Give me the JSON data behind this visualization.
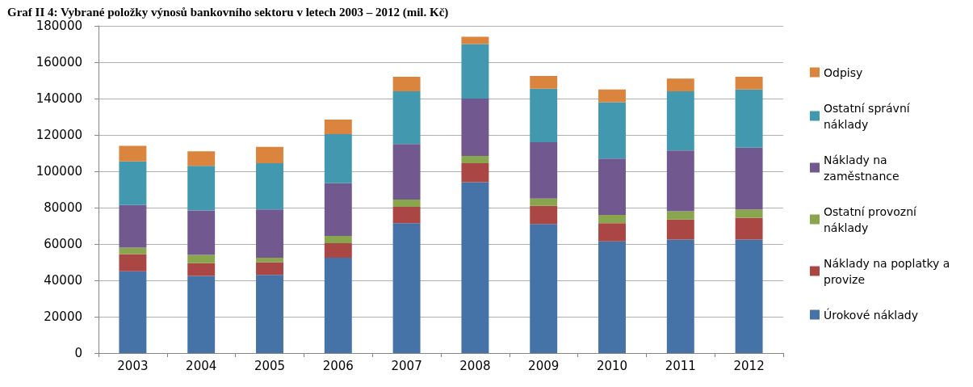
{
  "chart_data": {
    "type": "bar",
    "stacked": true,
    "title": "Graf II 4: Vybrané položky výnosů bankovního sektoru v letech 2003 – 2012 (mil. Kč)",
    "categories": [
      "2003",
      "2004",
      "2005",
      "2006",
      "2007",
      "2008",
      "2009",
      "2010",
      "2011",
      "2012"
    ],
    "series": [
      {
        "name": "Úrokové náklady",
        "color": "#4572a7",
        "values": [
          45000,
          42500,
          43000,
          52500,
          71500,
          94000,
          71000,
          61500,
          62500,
          62500
        ]
      },
      {
        "name": "Náklady na poplatky a provize",
        "color": "#aa4643",
        "values": [
          9500,
          7000,
          7000,
          8000,
          9000,
          10500,
          10000,
          10000,
          11000,
          12000
        ]
      },
      {
        "name": "Ostatní provozní náklady",
        "color": "#89a54e",
        "values": [
          3500,
          4500,
          2500,
          4000,
          4000,
          4000,
          4000,
          4500,
          4500,
          4500
        ]
      },
      {
        "name": "Náklady na zaměstnance",
        "color": "#71588f",
        "values": [
          23500,
          24500,
          26500,
          29000,
          30500,
          31500,
          31000,
          31000,
          33500,
          34000
        ]
      },
      {
        "name": "Ostatní správní náklady",
        "color": "#4198af",
        "values": [
          24000,
          24500,
          25500,
          27000,
          29000,
          30000,
          29500,
          31000,
          32500,
          32000
        ]
      },
      {
        "name": "Odpisy",
        "color": "#db843d",
        "values": [
          8500,
          8000,
          9000,
          8000,
          8000,
          4000,
          7000,
          7000,
          7000,
          7000
        ]
      }
    ],
    "ylim": [
      0,
      180000
    ],
    "yticks": [
      0,
      20000,
      40000,
      60000,
      80000,
      100000,
      120000,
      140000,
      160000,
      180000
    ],
    "grid": "y",
    "legend": "right"
  }
}
